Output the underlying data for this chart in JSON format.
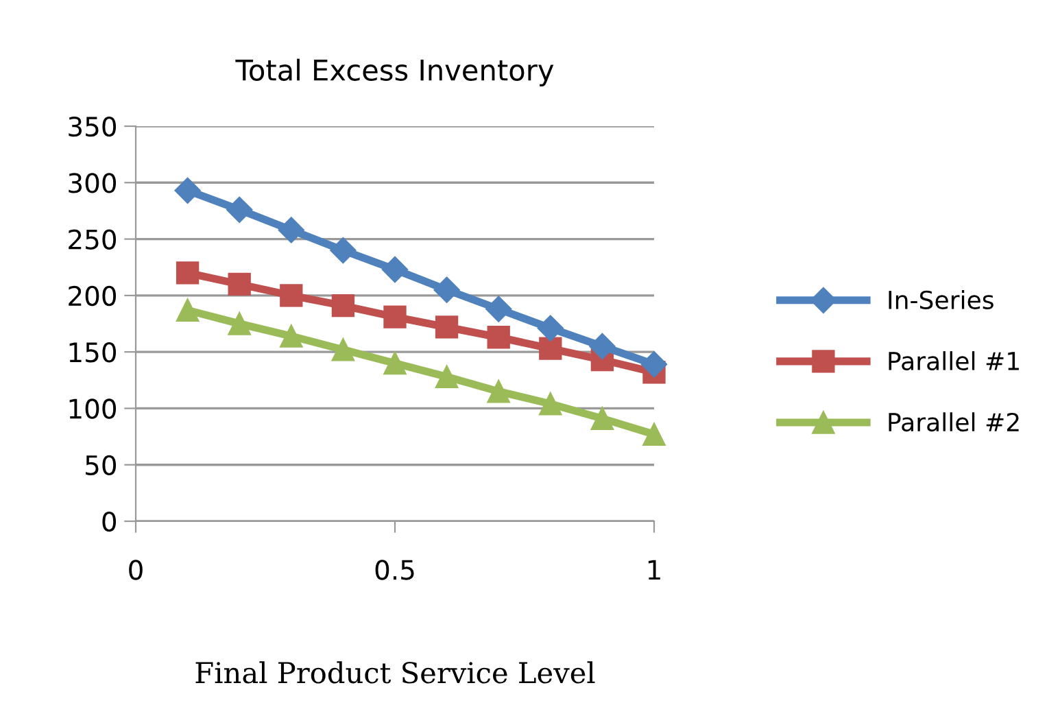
{
  "chart_data": {
    "type": "line",
    "title": "Total Excess Inventory",
    "xlabel": "Final Product Service Level",
    "x": [
      0.1,
      0.2,
      0.3,
      0.4,
      0.5,
      0.6,
      0.7,
      0.8,
      0.9,
      1.0
    ],
    "series": [
      {
        "name": "In-Series",
        "color": "#4f81bd",
        "marker": "diamond",
        "values": [
          293,
          276,
          258,
          240,
          223,
          205,
          188,
          171,
          155,
          139
        ]
      },
      {
        "name": "Parallel #1",
        "color": "#c0504d",
        "marker": "square",
        "values": [
          220,
          210,
          200,
          191,
          181,
          172,
          163,
          153,
          143,
          132
        ]
      },
      {
        "name": "Parallel #2",
        "color": "#9bbb59",
        "marker": "triangle",
        "values": [
          187,
          175,
          164,
          152,
          140,
          128,
          115,
          104,
          91,
          77
        ]
      }
    ],
    "xlim": [
      0,
      1
    ],
    "xticks": [
      0,
      0.5,
      1
    ],
    "ylim": [
      0,
      350
    ],
    "yticks": [
      0,
      50,
      100,
      150,
      200,
      250,
      300,
      350
    ],
    "grid": "y",
    "legend": "right",
    "line_style": "solid"
  }
}
